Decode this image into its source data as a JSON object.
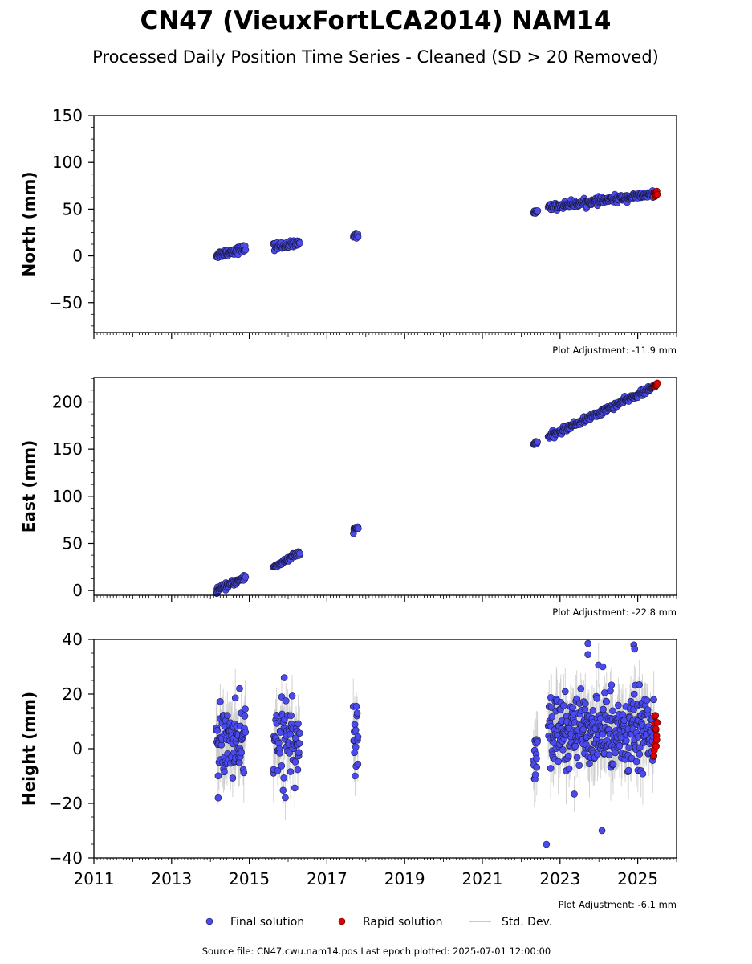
{
  "title": "CN47 (VieuxFortLCA2014) NAM14",
  "subtitle": "Processed Daily Position Time Series - Cleaned (SD > 20 Removed)",
  "footer": "Source file: CN47.cwu.nam14.pos  Last epoch plotted: 2025-07-01 12:00:00",
  "legend": {
    "final": "Final solution",
    "rapid": "Rapid solution",
    "std": "Std. Dev."
  },
  "colors": {
    "final": "#4a4af0",
    "rapid": "#e00000",
    "std": "#c8c8c8",
    "edge": "#1a1a40"
  },
  "chart_data": [
    {
      "type": "scatter",
      "ylabel": "North (mm)",
      "note": "Plot Adjustment: -11.9 mm",
      "xlim": [
        2011,
        2026
      ],
      "ylim": [
        -82,
        150
      ],
      "yticks": [
        -50,
        0,
        50,
        100,
        150
      ],
      "yminor": 12.5,
      "xticks": [],
      "segments": [
        {
          "x": [
            2014.15,
            2014.9
          ],
          "y": [
            1,
            8
          ],
          "n": 70,
          "noise": 2.0,
          "sd": 0
        },
        {
          "x": [
            2015.62,
            2016.3
          ],
          "y": [
            10,
            13
          ],
          "n": 55,
          "noise": 2.0,
          "sd": 0
        },
        {
          "x": [
            2017.68,
            2017.8
          ],
          "y": [
            21,
            22
          ],
          "n": 12,
          "noise": 1.2,
          "sd": 0
        },
        {
          "x": [
            2022.32,
            2022.42
          ],
          "y": [
            47,
            48
          ],
          "n": 10,
          "noise": 1.0,
          "sd": 0
        },
        {
          "x": [
            2022.7,
            2025.42
          ],
          "y": [
            52,
            66
          ],
          "n": 240,
          "noise": 1.8,
          "sd": 0
        }
      ],
      "rapid": {
        "x": [
          2025.42,
          2025.5
        ],
        "y": [
          66,
          67
        ],
        "n": 10,
        "noise": 1.2,
        "sd": 0
      }
    },
    {
      "type": "scatter",
      "ylabel": "East (mm)",
      "note": "Plot Adjustment: -22.8 mm",
      "xlim": [
        2011,
        2026
      ],
      "ylim": [
        -5,
        226
      ],
      "yticks": [
        0,
        50,
        100,
        150,
        200
      ],
      "yminor": 12.5,
      "xticks": [],
      "segments": [
        {
          "x": [
            2014.15,
            2014.9
          ],
          "y": [
            0,
            14
          ],
          "n": 70,
          "noise": 1.5,
          "sd": 0
        },
        {
          "x": [
            2015.62,
            2016.3
          ],
          "y": [
            25,
            40
          ],
          "n": 55,
          "noise": 1.5,
          "sd": 0
        },
        {
          "x": [
            2017.68,
            2017.8
          ],
          "y": [
            64,
            67
          ],
          "n": 12,
          "noise": 1.2,
          "sd": 0
        },
        {
          "x": [
            2022.32,
            2022.42
          ],
          "y": [
            155,
            158
          ],
          "n": 10,
          "noise": 1.0,
          "sd": 0
        },
        {
          "x": [
            2022.7,
            2025.42
          ],
          "y": [
            163,
            216
          ],
          "n": 240,
          "noise": 1.5,
          "sd": 0
        }
      ],
      "rapid": {
        "x": [
          2025.42,
          2025.5
        ],
        "y": [
          216,
          219
        ],
        "n": 10,
        "noise": 1.0,
        "sd": 0
      }
    },
    {
      "type": "scatter",
      "ylabel": "Height (mm)",
      "note": "Plot Adjustment: -6.1 mm",
      "xlim": [
        2011,
        2026
      ],
      "ylim": [
        -40,
        40
      ],
      "yticks": [
        -40,
        -20,
        0,
        20,
        40
      ],
      "yminor": 5,
      "xticks": [
        2011,
        2013,
        2015,
        2017,
        2019,
        2021,
        2023,
        2025
      ],
      "segments": [
        {
          "x": [
            2014.15,
            2014.9
          ],
          "y": [
            2,
            2
          ],
          "n": 90,
          "noise": 6.0,
          "sd": 8
        },
        {
          "x": [
            2015.62,
            2016.3
          ],
          "y": [
            4,
            4
          ],
          "n": 70,
          "noise": 6.5,
          "sd": 8
        },
        {
          "x": [
            2017.68,
            2017.8
          ],
          "y": [
            3,
            3
          ],
          "n": 16,
          "noise": 6.5,
          "sd": 8
        },
        {
          "x": [
            2022.32,
            2022.42
          ],
          "y": [
            -2,
            -2
          ],
          "n": 14,
          "noise": 5.0,
          "sd": 8
        },
        {
          "x": [
            2022.7,
            2025.42
          ],
          "y": [
            6,
            6
          ],
          "n": 330,
          "noise": 7.0,
          "sd": 9
        }
      ],
      "rapid": {
        "x": [
          2025.42,
          2025.5
        ],
        "y": [
          6,
          6
        ],
        "n": 12,
        "noise": 4.0,
        "sd": 0
      },
      "outliers": [
        {
          "x": 2022.65,
          "y": -35
        },
        {
          "x": 2024.08,
          "y": -30
        },
        {
          "x": 2023.72,
          "y": 38.5
        },
        {
          "x": 2024.9,
          "y": 38
        },
        {
          "x": 2024.92,
          "y": 36.5
        },
        {
          "x": 2014.2,
          "y": -18
        },
        {
          "x": 2015.9,
          "y": 26
        },
        {
          "x": 2014.75,
          "y": 22
        },
        {
          "x": 2023.72,
          "y": 34.5
        },
        {
          "x": 2024.1,
          "y": 30
        }
      ]
    }
  ]
}
